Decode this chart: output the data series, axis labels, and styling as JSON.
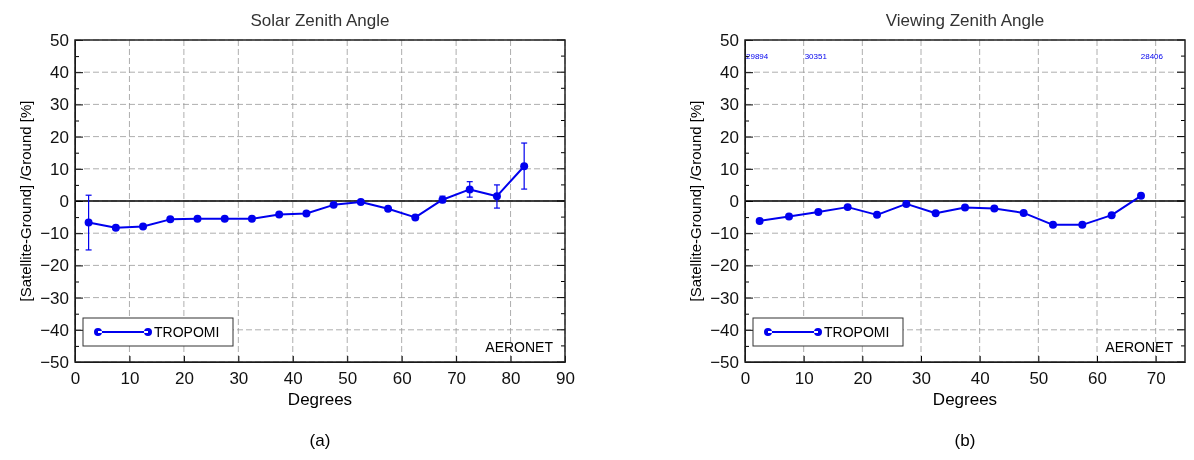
{
  "chart_data": [
    {
      "type": "line",
      "title": "Solar Zenith Angle",
      "xlabel": "Degrees",
      "ylabel": "[Satellite-Ground] /Ground [%]",
      "x": [
        2.5,
        7.5,
        12.5,
        17.5,
        22.5,
        27.5,
        32.5,
        37.5,
        42.5,
        47.5,
        52.5,
        57.5,
        62.5,
        67.5,
        72.5,
        77.5,
        82.5
      ],
      "series": [
        {
          "name": "TROPOMI",
          "color": "#0000ee",
          "values": [
            -6.7,
            -8.3,
            -7.9,
            -5.7,
            -5.5,
            -5.5,
            -5.5,
            -4.2,
            -3.9,
            -1.2,
            -0.3,
            -2.4,
            -5.1,
            0.4,
            3.6,
            1.5,
            10.8
          ],
          "errors": [
            [
              -15.2,
              1.8
            ],
            null,
            null,
            null,
            null,
            null,
            null,
            null,
            null,
            null,
            null,
            null,
            null,
            [
              -0.5,
              1.5
            ],
            [
              1.2,
              6.0
            ],
            [
              -2.2,
              5.0
            ],
            [
              3.7,
              18.0
            ]
          ]
        }
      ],
      "xlim": [
        0,
        90
      ],
      "xticks": [
        0,
        10,
        20,
        30,
        40,
        50,
        60,
        70,
        80,
        90
      ],
      "ylim": [
        -50,
        50
      ],
      "yticks": [
        -50,
        {
          "value": -45,
          "label": null
        },
        -40,
        {
          "value": -35,
          "label": null
        },
        -30,
        {
          "value": -25,
          "label": null
        },
        -20,
        {
          "value": -15,
          "label": null
        },
        -10,
        {
          "value": -5,
          "label": null
        },
        0,
        {
          "value": 5,
          "label": null
        },
        10,
        {
          "value": 15,
          "label": null
        },
        20,
        {
          "value": 25,
          "label": null
        },
        30,
        {
          "value": 35,
          "label": null
        },
        40,
        {
          "value": 45,
          "label": null
        },
        50
      ],
      "ref_lines": [
        {
          "axis": "y",
          "value": 0,
          "color": "#000000"
        }
      ],
      "grid": true,
      "legend": "bottom left",
      "marker": "circle",
      "line_style": "solid",
      "annotations": [
        "AERONET",
        "(a)"
      ]
    },
    {
      "type": "line",
      "title": "Viewing Zenith Angle",
      "xlabel": "Degrees",
      "ylabel": "[Satellite-Ground] /Ground  [%]",
      "x": [
        2.5,
        7.5,
        12.5,
        17.5,
        22.5,
        27.5,
        32.5,
        37.5,
        42.5,
        47.5,
        52.5,
        57.5,
        62.5,
        67.5
      ],
      "series": [
        {
          "name": "TROPOMI",
          "color": "#0000ee",
          "values": [
            -6.2,
            -4.8,
            -3.4,
            -1.9,
            -4.3,
            -0.9,
            -3.8,
            -2.0,
            -2.3,
            -3.7,
            -7.4,
            -7.4,
            -4.4,
            1.6
          ]
        }
      ],
      "xlim": [
        0,
        75
      ],
      "xticks": [
        0,
        10,
        20,
        30,
        40,
        50,
        60,
        70
      ],
      "ylim": [
        -50,
        50
      ],
      "yticks": [
        -50,
        {
          "value": -45,
          "label": null
        },
        -40,
        {
          "value": -35,
          "label": null
        },
        -30,
        {
          "value": -25,
          "label": null
        },
        -20,
        {
          "value": -15,
          "label": null
        },
        -10,
        {
          "value": -5,
          "label": null
        },
        0,
        {
          "value": 5,
          "label": null
        },
        10,
        {
          "value": 15,
          "label": null
        },
        20,
        {
          "value": 25,
          "label": null
        },
        30,
        {
          "value": 35,
          "label": null
        },
        40,
        {
          "value": 45,
          "label": null
        },
        50
      ],
      "ref_lines": [
        {
          "axis": "y",
          "value": 0,
          "color": "#000000"
        }
      ],
      "grid": true,
      "legend": "bottom left",
      "marker": "circle",
      "line_style": "solid",
      "annotations": [
        "29894",
        "30351",
        "28406",
        "AERONET",
        "(b)"
      ]
    }
  ]
}
